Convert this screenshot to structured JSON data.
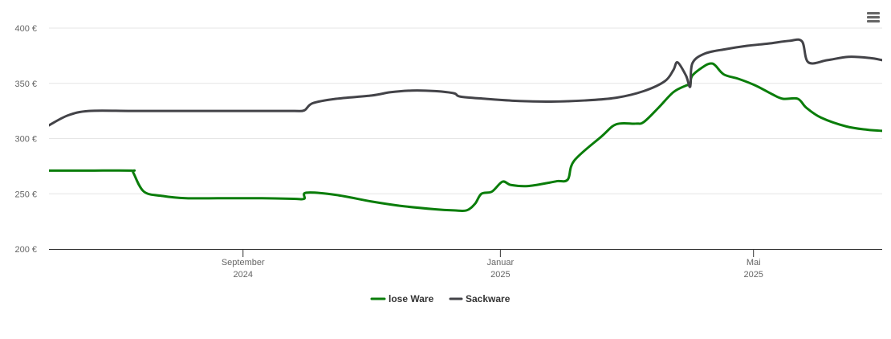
{
  "chart_data": {
    "type": "line",
    "title": "",
    "xlabel": "",
    "ylabel": "",
    "ylim": [
      200,
      400
    ],
    "xlim": [
      "2024-06-01",
      "2025-07-01"
    ],
    "yticks": [
      {
        "value": 200,
        "label": "200 €"
      },
      {
        "value": 250,
        "label": "250 €"
      },
      {
        "value": 300,
        "label": "300 €"
      },
      {
        "value": 350,
        "label": "350 €"
      },
      {
        "value": 400,
        "label": "400 €"
      }
    ],
    "xticks": [
      {
        "date": "2024-09-01",
        "month": "September",
        "year": "2024"
      },
      {
        "date": "2025-01-01",
        "month": "Januar",
        "year": "2025"
      },
      {
        "date": "2025-05-01",
        "month": "Mai",
        "year": "2025"
      }
    ],
    "grid": true,
    "legend_position": "bottom-center",
    "series": [
      {
        "name": "lose Ware",
        "color": "#0a7d0a",
        "points": [
          [
            "2024-06-01",
            271
          ],
          [
            "2024-06-20",
            271
          ],
          [
            "2024-07-10",
            271
          ],
          [
            "2024-07-11",
            269
          ],
          [
            "2024-07-16",
            252
          ],
          [
            "2024-07-25",
            248
          ],
          [
            "2024-08-05",
            246
          ],
          [
            "2024-08-20",
            246
          ],
          [
            "2024-08-28",
            246
          ],
          [
            "2024-09-10",
            246
          ],
          [
            "2024-09-25",
            245.5
          ],
          [
            "2024-09-30",
            245.5
          ],
          [
            "2024-10-01",
            251
          ],
          [
            "2024-10-15",
            249
          ],
          [
            "2024-11-01",
            243
          ],
          [
            "2024-11-15",
            239
          ],
          [
            "2024-12-01",
            236
          ],
          [
            "2024-12-10",
            235
          ],
          [
            "2024-12-16",
            235
          ],
          [
            "2024-12-20",
            241
          ],
          [
            "2024-12-23",
            250
          ],
          [
            "2024-12-28",
            252
          ],
          [
            "2025-01-02",
            261
          ],
          [
            "2025-01-06",
            258
          ],
          [
            "2025-01-14",
            257
          ],
          [
            "2025-01-24",
            260
          ],
          [
            "2025-01-28",
            261.5
          ],
          [
            "2025-02-02",
            263
          ],
          [
            "2025-02-05",
            280
          ],
          [
            "2025-02-18",
            302
          ],
          [
            "2025-02-25",
            313
          ],
          [
            "2025-03-06",
            313.5
          ],
          [
            "2025-03-10",
            315
          ],
          [
            "2025-03-17",
            328
          ],
          [
            "2025-03-24",
            342
          ],
          [
            "2025-03-30",
            348
          ],
          [
            "2025-04-01",
            349
          ],
          [
            "2025-04-02",
            357
          ],
          [
            "2025-04-08",
            366
          ],
          [
            "2025-04-11",
            368
          ],
          [
            "2025-04-13",
            366
          ],
          [
            "2025-04-17",
            358
          ],
          [
            "2025-04-24",
            354
          ],
          [
            "2025-05-02",
            348
          ],
          [
            "2025-05-10",
            340
          ],
          [
            "2025-05-15",
            336
          ],
          [
            "2025-05-22",
            336
          ],
          [
            "2025-05-26",
            328
          ],
          [
            "2025-06-02",
            319
          ],
          [
            "2025-06-14",
            311
          ],
          [
            "2025-06-24",
            308
          ],
          [
            "2025-07-01",
            307
          ]
        ]
      },
      {
        "name": "Sackware",
        "color": "#434348",
        "points": [
          [
            "2024-06-01",
            312
          ],
          [
            "2024-06-10",
            321
          ],
          [
            "2024-06-20",
            325
          ],
          [
            "2024-07-10",
            325
          ],
          [
            "2024-08-01",
            325
          ],
          [
            "2024-08-20",
            325
          ],
          [
            "2024-09-10",
            325
          ],
          [
            "2024-09-25",
            325
          ],
          [
            "2024-09-30",
            325.5
          ],
          [
            "2024-10-04",
            332
          ],
          [
            "2024-10-15",
            336
          ],
          [
            "2024-11-01",
            339
          ],
          [
            "2024-11-10",
            342
          ],
          [
            "2024-11-20",
            343.5
          ],
          [
            "2024-12-01",
            343
          ],
          [
            "2024-12-10",
            341
          ],
          [
            "2024-12-13",
            338
          ],
          [
            "2024-12-25",
            336
          ],
          [
            "2025-01-10",
            334
          ],
          [
            "2025-01-25",
            333.5
          ],
          [
            "2025-02-10",
            334.5
          ],
          [
            "2025-02-25",
            337
          ],
          [
            "2025-03-10",
            343
          ],
          [
            "2025-03-20",
            352
          ],
          [
            "2025-03-24",
            362
          ],
          [
            "2025-03-26",
            369
          ],
          [
            "2025-03-30",
            357
          ],
          [
            "2025-04-01",
            347
          ],
          [
            "2025-04-02",
            368
          ],
          [
            "2025-04-08",
            377
          ],
          [
            "2025-04-18",
            381
          ],
          [
            "2025-04-28",
            384
          ],
          [
            "2025-05-08",
            386
          ],
          [
            "2025-05-18",
            388.5
          ],
          [
            "2025-05-24",
            388
          ],
          [
            "2025-05-27",
            369
          ],
          [
            "2025-06-05",
            371
          ],
          [
            "2025-06-15",
            374
          ],
          [
            "2025-06-25",
            373
          ],
          [
            "2025-07-01",
            371
          ]
        ]
      }
    ]
  }
}
